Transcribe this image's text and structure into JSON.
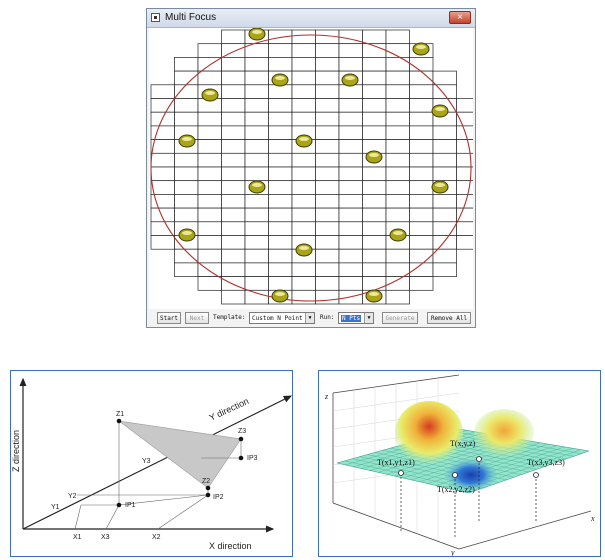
{
  "window": {
    "title": "Multi Focus",
    "close_label": "×",
    "app_icon": "window-app-icon",
    "close_icon": "close-icon"
  },
  "toolbar": {
    "start_label": "Start",
    "next_label": "Next",
    "template_label": "Template:",
    "template_value": "Custom N Point",
    "run_label": "Run:",
    "run_value": "N Pts",
    "generate_label": "Generate",
    "remove_all_label": "Remove All"
  },
  "colors": {
    "circle": "#b0302c",
    "focus_point": "#a9a418",
    "panel_border": "#3a6fc0"
  },
  "diagram_3d": {
    "z_axis_label": "Z direction",
    "x_axis_label": "X direction",
    "y_axis_label": "Y direction",
    "point_labels": [
      "Z1",
      "Z2",
      "Z3",
      "Y1",
      "Y2",
      "Y3",
      "X1",
      "X2",
      "X3",
      "IP1",
      "IP2",
      "IP3"
    ]
  },
  "surface_plot": {
    "z_label": "z",
    "x_label": "x",
    "y_label": "y",
    "annotations": [
      "T(x,y,z)",
      "T(x1,y1,z1)",
      "T(x2,y2,z2)",
      "T(x3,y3,z3)"
    ]
  }
}
